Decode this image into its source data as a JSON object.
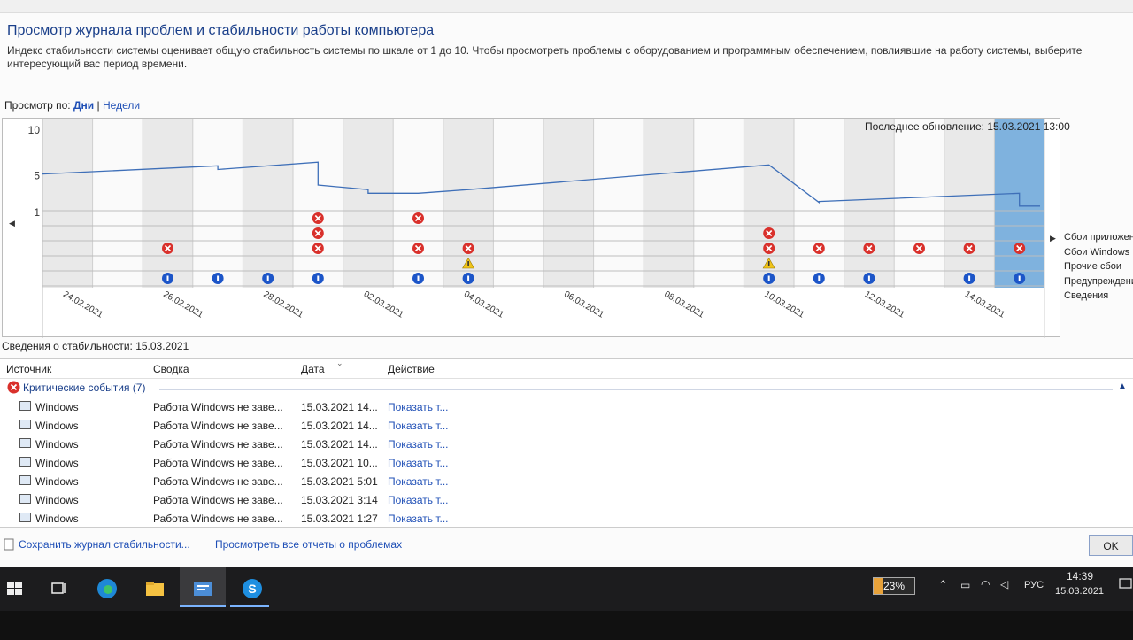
{
  "window": {
    "title": "Просмотр журнала проблем и стабильности работы компьютера",
    "description": "Индекс стабильности системы оценивает общую стабильность системы по шкале от 1 до 10. Чтобы просмотреть проблемы с оборудованием и программным обеспечением, повлиявшие на работу системы, выберите интересующий вас период времени."
  },
  "viewby": {
    "label": "Просмотр по:",
    "days": "Дни",
    "separator": "|",
    "weeks": "Недели"
  },
  "last_update": "Последнее обновление: 15.03.2021 13:00",
  "chart_data": {
    "type": "line",
    "y_ticks": [
      "10",
      "5",
      "1"
    ],
    "ylim": [
      1,
      10
    ],
    "date_labels": [
      "24.02.2021",
      "26.02.2021",
      "28.02.2021",
      "02.03.2021",
      "04.03.2021",
      "06.03.2021",
      "08.03.2021",
      "10.03.2021",
      "12.03.2021",
      "14.03.2021"
    ],
    "legend": [
      "Сбои приложений",
      "Сбои Windows",
      "Прочие сбои",
      "Предупреждения",
      "Сведения"
    ],
    "series": [
      {
        "x": [
          "23.02",
          "26.02",
          "26.02",
          "28.02",
          "28.02",
          "01.03",
          "01.03",
          "02.03",
          "03.03",
          "09.03",
          "10.03",
          "10.03",
          "14.03",
          "14.03",
          "15.03"
        ],
        "values": [
          5.1,
          6.0,
          5.6,
          6.4,
          3.9,
          3.4,
          3.0,
          3.0,
          3.4,
          6.1,
          2.0,
          2.1,
          3.0,
          1.6,
          1.6
        ]
      }
    ],
    "selected_day": "15.03.2021"
  },
  "details": {
    "title": "Сведения о стабильности: 15.03.2021",
    "columns": {
      "source": "Источник",
      "summary": "Сводка",
      "date": "Дата",
      "action": "Действие"
    },
    "group": "Критические события (7)",
    "rows": [
      {
        "source": "Windows",
        "summary": "Работа Windows не заве...",
        "date": "15.03.2021 14...",
        "action": "Показать т..."
      },
      {
        "source": "Windows",
        "summary": "Работа Windows не заве...",
        "date": "15.03.2021 14...",
        "action": "Показать т..."
      },
      {
        "source": "Windows",
        "summary": "Работа Windows не заве...",
        "date": "15.03.2021 14...",
        "action": "Показать т..."
      },
      {
        "source": "Windows",
        "summary": "Работа Windows не заве...",
        "date": "15.03.2021 10...",
        "action": "Показать т..."
      },
      {
        "source": "Windows",
        "summary": "Работа Windows не заве...",
        "date": "15.03.2021 5:01",
        "action": "Показать т..."
      },
      {
        "source": "Windows",
        "summary": "Работа Windows не заве...",
        "date": "15.03.2021 3:14",
        "action": "Показать т..."
      },
      {
        "source": "Windows",
        "summary": "Работа Windows не заве...",
        "date": "15.03.2021 1:27",
        "action": "Показать т..."
      }
    ]
  },
  "bottom": {
    "save_link": "Сохранить журнал стабильности...",
    "view_all_link": "Просмотреть все отчеты о проблемах",
    "ok": "OK"
  },
  "taskbar": {
    "battery": "23%",
    "language": "РУС",
    "time": "14:39",
    "date": "15.03.2021"
  },
  "colors": {
    "critical": "#d9302b",
    "info": "#1c55c8",
    "warning": "#f0c419",
    "selected": "#7fb2de",
    "line": "#3e6fb8"
  }
}
